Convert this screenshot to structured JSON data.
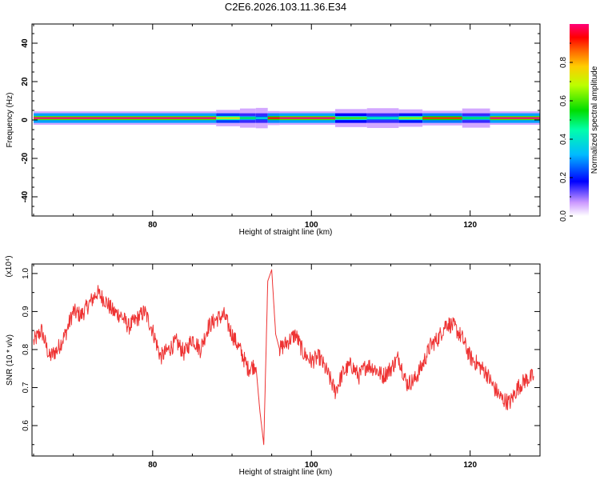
{
  "figure": {
    "title": "C2E6.2026.103.11.36.E34"
  },
  "chart_data": [
    {
      "type": "heatmap",
      "xlabel": "Height of straight line (km)",
      "ylabel": "Frequency (Hz)",
      "xlim": [
        64.8,
        128.8
      ],
      "ylim": [
        -50,
        50
      ],
      "xticks": [
        80,
        100,
        120
      ],
      "yticks": [
        -40,
        -20,
        0,
        20,
        40
      ],
      "colorbar": {
        "label": "Normalized spectral amplitude",
        "range": [
          0.0,
          1.0
        ],
        "ticks": [
          "0.0",
          "0.2",
          "0.4",
          "0.6",
          "0.8"
        ]
      },
      "band_center_hz": 1,
      "band_halfwidth_hz": 1.5,
      "segments": [
        {
          "x0": 65.0,
          "x1": 88.0,
          "amplitude": 1.0
        },
        {
          "x0": 88.0,
          "x1": 91.0,
          "amplitude": 0.75
        },
        {
          "x0": 91.0,
          "x1": 93.0,
          "amplitude": 0.5
        },
        {
          "x0": 93.0,
          "x1": 94.5,
          "amplitude": 0.4
        },
        {
          "x0": 94.5,
          "x1": 96.0,
          "amplitude": 0.95
        },
        {
          "x0": 96.0,
          "x1": 103.0,
          "amplitude": 1.0
        },
        {
          "x0": 103.0,
          "x1": 107.0,
          "amplitude": 0.6
        },
        {
          "x0": 107.0,
          "x1": 111.0,
          "amplitude": 0.45
        },
        {
          "x0": 111.0,
          "x1": 114.0,
          "amplitude": 0.65
        },
        {
          "x0": 114.0,
          "x1": 119.0,
          "amplitude": 0.9
        },
        {
          "x0": 119.0,
          "x1": 122.5,
          "amplitude": 0.5
        },
        {
          "x0": 122.5,
          "x1": 129.0,
          "amplitude": 1.0
        }
      ]
    },
    {
      "type": "line",
      "xlabel": "Height of straight line (km)",
      "ylabel": "SNR (10 * v/v)",
      "scale_label": "(x10⁴)",
      "xlim": [
        64.8,
        128.8
      ],
      "ylim": [
        0.52,
        1.025
      ],
      "xticks": [
        80,
        100,
        120
      ],
      "yticks": [
        "0.6",
        "0.7",
        "0.8",
        "0.9",
        "1.0"
      ],
      "series_color": "#ee3333",
      "x": [
        65,
        66,
        67,
        68,
        69,
        70,
        71,
        72,
        73,
        74,
        75,
        76,
        77,
        78,
        79,
        80,
        81,
        82,
        83,
        84,
        85,
        86,
        87,
        88,
        89,
        90,
        91,
        92,
        93,
        93.5,
        94,
        94.5,
        95,
        95.5,
        96,
        97,
        98,
        99,
        100,
        101,
        102,
        103,
        104,
        105,
        106,
        107,
        108,
        109,
        110,
        111,
        112,
        113,
        114,
        115,
        116,
        117,
        118,
        119,
        120,
        121,
        122,
        123,
        124,
        125,
        126,
        127,
        128
      ],
      "y": [
        0.82,
        0.85,
        0.78,
        0.8,
        0.84,
        0.9,
        0.89,
        0.92,
        0.95,
        0.93,
        0.9,
        0.89,
        0.86,
        0.88,
        0.9,
        0.85,
        0.78,
        0.8,
        0.82,
        0.79,
        0.83,
        0.8,
        0.86,
        0.88,
        0.89,
        0.84,
        0.8,
        0.75,
        0.76,
        0.64,
        0.55,
        0.98,
        1.01,
        0.84,
        0.8,
        0.82,
        0.84,
        0.79,
        0.77,
        0.78,
        0.74,
        0.69,
        0.74,
        0.76,
        0.73,
        0.76,
        0.75,
        0.73,
        0.75,
        0.78,
        0.71,
        0.72,
        0.76,
        0.81,
        0.83,
        0.87,
        0.86,
        0.83,
        0.78,
        0.76,
        0.74,
        0.7,
        0.67,
        0.66,
        0.7,
        0.72,
        0.73
      ]
    }
  ]
}
